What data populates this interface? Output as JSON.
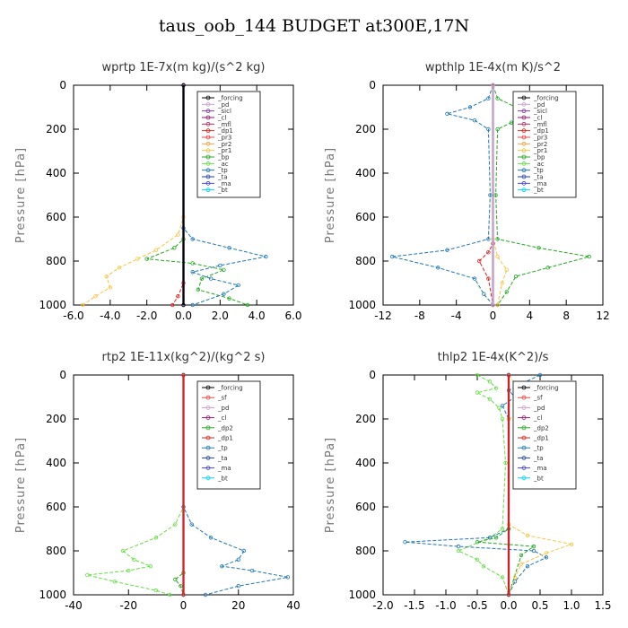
{
  "title": "taus_oob_144  BUDGET at300E,17N",
  "chart_data": [
    {
      "type": "line",
      "title": "wprtp   1E-7x(m kg)/(s^2 kg)",
      "ylabel": "Pressure [hPa]",
      "xlim": [
        -6,
        6
      ],
      "ylim": [
        1000,
        0
      ],
      "xticks": [
        "-6.0",
        "-4.0",
        "-2.0",
        "0.0",
        "2.0",
        "4.0",
        "6.0"
      ],
      "xtick_values": [
        -6,
        -4,
        -2,
        0,
        2,
        4,
        6
      ],
      "yticks": [
        "0",
        "200",
        "400",
        "600",
        "800",
        "1000"
      ],
      "ytick_values": [
        0,
        200,
        400,
        600,
        800,
        1000
      ],
      "legend": [
        "_forcing",
        "_pd",
        "_sicl",
        "_cl",
        "_mfl",
        "_dp1",
        "_pr3",
        "_pr2",
        "_pr1",
        "_bp",
        "_ac",
        "_tp",
        "_ta",
        "_ma",
        "_bt"
      ],
      "series": [
        {
          "name": "_pr1",
          "color": "#f5c542",
          "points": [
            [
              0,
              0
            ],
            [
              0,
              600
            ],
            [
              -0.3,
              680
            ],
            [
              -1.5,
              750
            ],
            [
              -2.5,
              790
            ],
            [
              -3.5,
              830
            ],
            [
              -4.2,
              870
            ],
            [
              -4.0,
              920
            ],
            [
              -4.8,
              960
            ],
            [
              -5.5,
              1000
            ]
          ]
        },
        {
          "name": "_ac",
          "color": "#22aa22",
          "points": [
            [
              0,
              0
            ],
            [
              0,
              700
            ],
            [
              -0.5,
              740
            ],
            [
              -2.0,
              790
            ],
            [
              0.5,
              810
            ],
            [
              2.2,
              840
            ],
            [
              1.0,
              880
            ],
            [
              0.8,
              930
            ],
            [
              2.5,
              970
            ],
            [
              3.5,
              1000
            ]
          ]
        },
        {
          "name": "_tp",
          "color": "#1f77b4",
          "points": [
            [
              0,
              0
            ],
            [
              0,
              650
            ],
            [
              0.5,
              700
            ],
            [
              2.5,
              740
            ],
            [
              4.5,
              780
            ],
            [
              2.0,
              820
            ],
            [
              0.5,
              850
            ],
            [
              1.5,
              880
            ],
            [
              3.0,
              910
            ],
            [
              2.2,
              950
            ],
            [
              0.5,
              1000
            ]
          ]
        },
        {
          "name": "_dp1",
          "color": "#dd2222",
          "points": [
            [
              0,
              0
            ],
            [
              0,
              900
            ],
            [
              -0.3,
              960
            ],
            [
              -0.6,
              1000
            ]
          ]
        },
        {
          "name": "_ma",
          "color": "#4444dd",
          "points": [
            [
              0,
              0
            ],
            [
              0,
              1000
            ]
          ]
        },
        {
          "name": "_sicl",
          "color": "#7b3fa0",
          "points": [
            [
              0,
              0
            ],
            [
              0,
              1000
            ]
          ]
        },
        {
          "name": "_forcing",
          "color": "#000000",
          "points": [
            [
              0,
              0
            ],
            [
              0,
              1000
            ]
          ]
        }
      ]
    },
    {
      "type": "line",
      "title": "wpthlp   1E-4x(m K)/s^2",
      "ylabel": "Pressure [hPa]",
      "xlim": [
        -12,
        12
      ],
      "ylim": [
        1000,
        0
      ],
      "xticks": [
        "-12",
        "-8",
        "-4",
        "0",
        "4",
        "8",
        "12"
      ],
      "xtick_values": [
        -12,
        -8,
        -4,
        0,
        4,
        8,
        12
      ],
      "yticks": [
        "0",
        "200",
        "400",
        "600",
        "800",
        "1000"
      ],
      "ytick_values": [
        0,
        200,
        400,
        600,
        800,
        1000
      ],
      "legend": [
        "_forcing",
        "_pd",
        "_sicl",
        "_cl",
        "_mfl",
        "_dp1",
        "_pr3",
        "_pr2",
        "_pr1",
        "_bp",
        "_ac",
        "_tp",
        "_ta",
        "_ma",
        "_bt"
      ],
      "series": [
        {
          "name": "_tp",
          "color": "#1f77b4",
          "points": [
            [
              0,
              0
            ],
            [
              -0.5,
              60
            ],
            [
              -2.5,
              100
            ],
            [
              -5,
              130
            ],
            [
              -2,
              160
            ],
            [
              -0.5,
              200
            ],
            [
              -0.3,
              500
            ],
            [
              -0.5,
              700
            ],
            [
              -5,
              750
            ],
            [
              -11,
              780
            ],
            [
              -6,
              830
            ],
            [
              -2,
              880
            ],
            [
              -1,
              950
            ],
            [
              0,
              1000
            ]
          ]
        },
        {
          "name": "_ac",
          "color": "#22aa22",
          "points": [
            [
              0,
              0
            ],
            [
              0.5,
              60
            ],
            [
              2.5,
              100
            ],
            [
              5,
              130
            ],
            [
              2,
              170
            ],
            [
              0.5,
              200
            ],
            [
              0.3,
              500
            ],
            [
              0.5,
              700
            ],
            [
              5,
              740
            ],
            [
              10.5,
              780
            ],
            [
              6,
              830
            ],
            [
              2.5,
              870
            ],
            [
              1.5,
              940
            ],
            [
              0.5,
              1000
            ]
          ]
        },
        {
          "name": "_pr1",
          "color": "#f5c542",
          "points": [
            [
              0,
              0
            ],
            [
              0,
              700
            ],
            [
              0.5,
              780
            ],
            [
              1.5,
              840
            ],
            [
              1.0,
              900
            ],
            [
              0.5,
              1000
            ]
          ]
        },
        {
          "name": "_dp1",
          "color": "#dd2222",
          "points": [
            [
              0,
              0
            ],
            [
              0,
              720
            ],
            [
              -0.5,
              760
            ],
            [
              -1.5,
              800
            ],
            [
              -0.5,
              880
            ],
            [
              0,
              1000
            ]
          ]
        },
        {
          "name": "_sicl",
          "color": "#7b3fa0",
          "points": [
            [
              0,
              0
            ],
            [
              0,
              1000
            ]
          ]
        },
        {
          "name": "_forcing",
          "color": "#c8a2c8",
          "points": [
            [
              0,
              0
            ],
            [
              0,
              1000
            ]
          ]
        }
      ]
    },
    {
      "type": "line",
      "title": "rtp2   1E-11x(kg^2)/(kg^2 s)",
      "ylabel": "Pressure [hPa]",
      "xlim": [
        -40,
        40
      ],
      "ylim": [
        1000,
        0
      ],
      "xticks": [
        "-40",
        "-20",
        "0",
        "20",
        "40"
      ],
      "xtick_values": [
        -40,
        -20,
        0,
        20,
        40
      ],
      "yticks": [
        "0",
        "200",
        "400",
        "600",
        "800",
        "1000"
      ],
      "ytick_values": [
        0,
        200,
        400,
        600,
        800,
        1000
      ],
      "legend": [
        "_forcing",
        "_sf",
        "_pd",
        "_cl",
        "_dp2",
        "_dp1",
        "_tp",
        "_ta",
        "_ma",
        "_bt"
      ],
      "series": [
        {
          "name": "_dp1",
          "color": "#66dd44",
          "points": [
            [
              0,
              0
            ],
            [
              0,
              600
            ],
            [
              -3,
              680
            ],
            [
              -10,
              740
            ],
            [
              -22,
              800
            ],
            [
              -18,
              840
            ],
            [
              -12,
              870
            ],
            [
              -20,
              890
            ],
            [
              -35,
              910
            ],
            [
              -25,
              940
            ],
            [
              -10,
              980
            ],
            [
              -5,
              1000
            ]
          ]
        },
        {
          "name": "_tp",
          "color": "#1f77b4",
          "points": [
            [
              0,
              0
            ],
            [
              0,
              600
            ],
            [
              3,
              680
            ],
            [
              10,
              740
            ],
            [
              22,
              800
            ],
            [
              20,
              840
            ],
            [
              14,
              870
            ],
            [
              25,
              890
            ],
            [
              38,
              920
            ],
            [
              20,
              960
            ],
            [
              8,
              1000
            ]
          ]
        },
        {
          "name": "_dp2",
          "color": "#22aa22",
          "points": [
            [
              0,
              0
            ],
            [
              0,
              900
            ],
            [
              -3,
              930
            ],
            [
              -1,
              960
            ],
            [
              0,
              1000
            ]
          ]
        },
        {
          "name": "_ma",
          "color": "#4444dd",
          "points": [
            [
              0,
              0
            ],
            [
              0,
              1000
            ]
          ]
        },
        {
          "name": "_forcing",
          "color": "#dd2222",
          "points": [
            [
              0,
              0
            ],
            [
              0,
              1000
            ]
          ]
        }
      ]
    },
    {
      "type": "line",
      "title": "thlp2   1E-4x(K^2)/s",
      "ylabel": "Pressure [hPa]",
      "xlim": [
        -2.0,
        1.5
      ],
      "ylim": [
        1000,
        0
      ],
      "xticks": [
        "-2.0",
        "-1.5",
        "-1.0",
        "-0.5",
        "0.0",
        "0.5",
        "1.0",
        "1.5"
      ],
      "xtick_values": [
        -2.0,
        -1.5,
        -1.0,
        -0.5,
        0.0,
        0.5,
        1.0,
        1.5
      ],
      "yticks": [
        "0",
        "200",
        "400",
        "600",
        "800",
        "1000"
      ],
      "ytick_values": [
        0,
        200,
        400,
        600,
        800,
        1000
      ],
      "legend": [
        "_forcing",
        "_sf",
        "_pd",
        "_cl",
        "_dp2",
        "_dp1",
        "_tp",
        "_ta",
        "_ma",
        "_bt"
      ],
      "series": [
        {
          "name": "_dp1",
          "color": "#66dd44",
          "points": [
            [
              -0.5,
              0
            ],
            [
              -0.3,
              30
            ],
            [
              -0.2,
              60
            ],
            [
              -0.5,
              80
            ],
            [
              -0.3,
              110
            ],
            [
              -0.15,
              150
            ],
            [
              -0.1,
              200
            ],
            [
              -0.05,
              400
            ],
            [
              -0.1,
              700
            ],
            [
              -0.3,
              740
            ],
            [
              -0.8,
              800
            ],
            [
              -0.5,
              840
            ],
            [
              -0.4,
              870
            ],
            [
              -0.1,
              920
            ],
            [
              0,
              1000
            ]
          ]
        },
        {
          "name": "_tp",
          "color": "#1f77b4",
          "points": [
            [
              0.5,
              0
            ],
            [
              0.2,
              40
            ],
            [
              0,
              70
            ],
            [
              0.1,
              100
            ],
            [
              -0.1,
              140
            ],
            [
              0,
              200
            ],
            [
              0,
              700
            ],
            [
              -0.3,
              740
            ],
            [
              -1.65,
              760
            ],
            [
              -0.8,
              780
            ],
            [
              0.4,
              800
            ],
            [
              0.6,
              830
            ],
            [
              0.3,
              870
            ],
            [
              0.1,
              940
            ],
            [
              0,
              1000
            ]
          ]
        },
        {
          "name": "_dp2",
          "color": "#22aa22",
          "points": [
            [
              0,
              0
            ],
            [
              0,
              700
            ],
            [
              -0.2,
              740
            ],
            [
              -0.5,
              760
            ],
            [
              0.4,
              780
            ],
            [
              0.2,
              820
            ],
            [
              0,
              1000
            ]
          ]
        },
        {
          "name": "_cl",
          "color": "#f5c542",
          "points": [
            [
              0,
              0
            ],
            [
              0.2,
              80
            ],
            [
              0.5,
              120
            ],
            [
              0.3,
              160
            ],
            [
              0,
              200
            ],
            [
              0,
              680
            ],
            [
              0.3,
              730
            ],
            [
              1.0,
              770
            ],
            [
              0.6,
              810
            ],
            [
              0.2,
              860
            ],
            [
              0.1,
              920
            ],
            [
              0,
              1000
            ]
          ]
        },
        {
          "name": "_ma",
          "color": "#4444dd",
          "points": [
            [
              0,
              0
            ],
            [
              0,
              1000
            ]
          ]
        },
        {
          "name": "_forcing",
          "color": "#cc2222",
          "points": [
            [
              0,
              0
            ],
            [
              0,
              1000
            ]
          ]
        }
      ]
    }
  ]
}
